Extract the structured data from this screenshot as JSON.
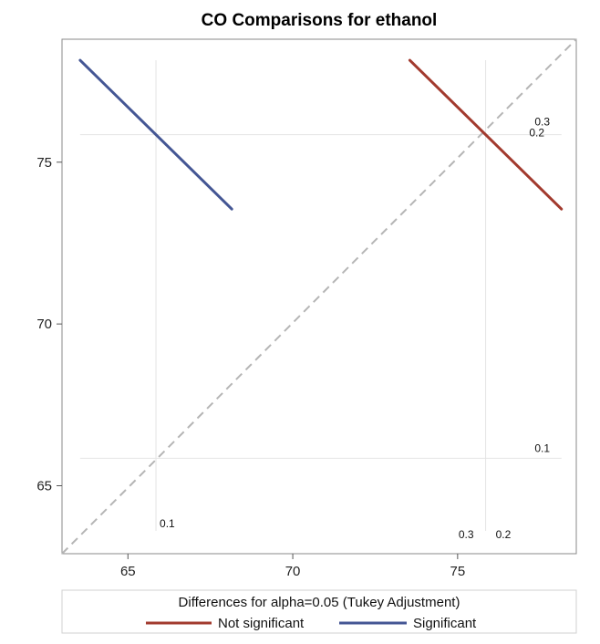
{
  "chart_data": {
    "type": "line",
    "title": "CO Comparisons for ethanol",
    "xlabel": "",
    "ylabel": "",
    "xlim": [
      63,
      78.6
    ],
    "ylim": [
      62.9,
      78.8
    ],
    "xticks": [
      65,
      70,
      75
    ],
    "yticks": [
      65,
      70,
      75
    ],
    "grid": false,
    "diagonal_reference": "dashed",
    "level_means": [
      {
        "label": "0.1",
        "value": 65.85
      },
      {
        "label": "0.2",
        "value": 75.85
      },
      {
        "label": "0.3",
        "value": 75.85
      }
    ],
    "series": [
      {
        "name": "Not significant",
        "color": "#A23A2E",
        "segments": [
          {
            "x": [
              73.55,
              78.15
            ],
            "y": [
              78.15,
              73.55
            ]
          }
        ]
      },
      {
        "name": "Significant",
        "color": "#445694",
        "segments": [
          {
            "x": [
              63.55,
              68.15
            ],
            "y": [
              78.15,
              73.55
            ]
          }
        ]
      }
    ],
    "legend": {
      "title": "Differences for alpha=0.05 (Tukey Adjustment)",
      "position": "bottom",
      "items": [
        {
          "label": "Not significant",
          "color": "#A23A2E"
        },
        {
          "label": "Significant",
          "color": "#445694"
        }
      ]
    }
  }
}
